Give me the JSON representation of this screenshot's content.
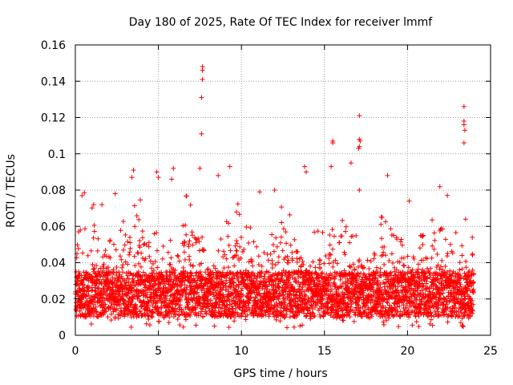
{
  "chart_data": {
    "type": "scatter",
    "title": "Day 180 of 2025, Rate Of TEC Index for receiver lmmf",
    "xlabel": "GPS time / hours",
    "ylabel": "ROTI / TECUs",
    "xlim": [
      0,
      25
    ],
    "ylim": [
      0,
      0.16
    ],
    "xticks": [
      0,
      5,
      10,
      15,
      20,
      25
    ],
    "xtick_labels": [
      "0",
      "5",
      "10",
      "15",
      "20",
      "25"
    ],
    "yticks": [
      0,
      0.02,
      0.04,
      0.06,
      0.08,
      0.1,
      0.12,
      0.14,
      0.16
    ],
    "ytick_labels": [
      "0",
      "0.02",
      "0.04",
      "0.06",
      "0.08",
      "0.1",
      "0.12",
      "0.14",
      "0.16"
    ],
    "grid": true,
    "marker": "+",
    "marker_color": "#ff0000",
    "x_range_of_points": [
      0,
      24
    ],
    "typical_band": [
      0.01,
      0.035
    ],
    "series": [
      {
        "values_note": "dense cloud",
        "points": [
          [
            0.1,
            0.045
          ],
          [
            0.2,
            0.057
          ],
          [
            0.3,
            0.058
          ],
          [
            1.1,
            0.072
          ],
          [
            1.6,
            0.072
          ],
          [
            2.4,
            0.078
          ],
          [
            3.5,
            0.091
          ],
          [
            3.4,
            0.087
          ],
          [
            4.9,
            0.09
          ],
          [
            5.0,
            0.087
          ],
          [
            5.8,
            0.086
          ],
          [
            5.9,
            0.092
          ],
          [
            7.5,
            0.092
          ],
          [
            7.65,
            0.148
          ],
          [
            7.65,
            0.146
          ],
          [
            7.65,
            0.141
          ],
          [
            7.6,
            0.131
          ],
          [
            7.6,
            0.111
          ],
          [
            8.6,
            0.088
          ],
          [
            9.3,
            0.093
          ],
          [
            11.1,
            0.079
          ],
          [
            12.0,
            0.08
          ],
          [
            13.8,
            0.093
          ],
          [
            13.9,
            0.09
          ],
          [
            15.5,
            0.107
          ],
          [
            15.5,
            0.106
          ],
          [
            15.4,
            0.093
          ],
          [
            16.6,
            0.095
          ],
          [
            17.1,
            0.121
          ],
          [
            17.1,
            0.108
          ],
          [
            17.15,
            0.107
          ],
          [
            17.1,
            0.104
          ],
          [
            17.05,
            0.103
          ],
          [
            17.1,
            0.08
          ],
          [
            18.8,
            0.088
          ],
          [
            20.1,
            0.074
          ],
          [
            22.4,
            0.077
          ],
          [
            23.4,
            0.126
          ],
          [
            23.4,
            0.118
          ],
          [
            23.4,
            0.116
          ],
          [
            23.45,
            0.113
          ],
          [
            23.4,
            0.106
          ],
          [
            23.5,
            0.064
          ],
          [
            23.9,
            0.054
          ]
        ]
      }
    ]
  }
}
